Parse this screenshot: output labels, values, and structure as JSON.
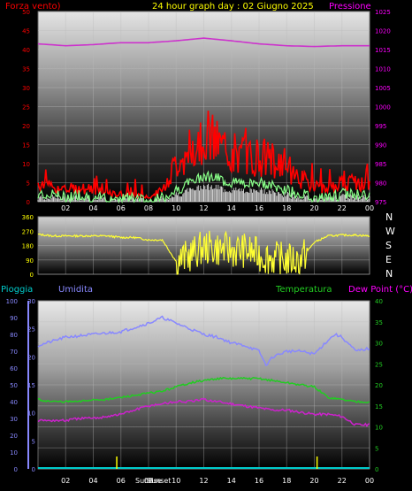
{
  "header": {
    "left_label": "Forza vento)",
    "title": "24 hour graph day : 02 Giugno 2025",
    "right_label": "Pressione"
  },
  "middle": {
    "compass": [
      "N",
      "W",
      "S",
      "E",
      "N"
    ]
  },
  "lower_header": {
    "rain_label": "Pioggia",
    "humidity_label": "Umidita",
    "temp_label": "Temperatura",
    "dew_label": "Dew Point (°C)"
  },
  "sun": {
    "sunrise_label": "Sunrise",
    "sunset_label": "Sunset",
    "sunrise_hour": 5.7,
    "sunset_hour": 20.2
  },
  "colors": {
    "wind_gust": "#ff0000",
    "wind_avg": "#88ff88",
    "wind_low": "#ffffff",
    "pressure": "#cc33cc",
    "direction": "#ffff33",
    "humidity": "#8888ff",
    "temperature": "#22cc22",
    "dewpoint": "#cc22cc",
    "rain": "#00cccc",
    "label_red": "#ff0000",
    "label_yellow": "#ffff00",
    "label_magenta": "#ff00ff"
  },
  "chart_data": [
    {
      "type": "line",
      "name": "wind-pressure",
      "x_ticks": [
        "02",
        "04",
        "06",
        "08",
        "10",
        "12",
        "14",
        "16",
        "18",
        "20",
        "22",
        "00"
      ],
      "xlim": [
        0,
        24
      ],
      "y_left_ticks": [
        0,
        5,
        10,
        15,
        20,
        25,
        30,
        35,
        40,
        45,
        50
      ],
      "ylim_left": [
        0,
        50
      ],
      "y_right_ticks": [
        975,
        980,
        985,
        990,
        995,
        1000,
        1005,
        1010,
        1015,
        1020,
        1025
      ],
      "ylim_right": [
        975,
        1025
      ],
      "grid": true,
      "series": [
        {
          "key": "gust",
          "x": [
            0,
            1,
            2,
            3,
            4,
            5,
            6,
            7,
            8,
            9,
            10,
            11,
            12,
            13,
            14,
            15,
            16,
            17,
            18,
            19,
            20,
            21,
            22,
            23,
            24
          ],
          "values": [
            5,
            4,
            3,
            4,
            3,
            2,
            2,
            2,
            1,
            3,
            10,
            14,
            18,
            15,
            13,
            12,
            12,
            11,
            9,
            6,
            4,
            3,
            5,
            5,
            4
          ]
        },
        {
          "key": "avg",
          "x": [
            0,
            1,
            2,
            3,
            4,
            5,
            6,
            7,
            8,
            9,
            10,
            11,
            12,
            13,
            14,
            15,
            16,
            17,
            18,
            19,
            20,
            21,
            22,
            23,
            24
          ],
          "values": [
            2,
            2,
            1,
            2,
            1,
            1,
            1,
            1,
            0,
            1,
            3,
            5,
            7,
            6,
            5,
            5,
            5,
            4,
            3,
            2,
            1,
            1,
            2,
            2,
            2
          ]
        },
        {
          "key": "pressure",
          "x": [
            0,
            2,
            4,
            6,
            8,
            10,
            12,
            14,
            16,
            18,
            20,
            22,
            24
          ],
          "values": [
            1016.5,
            1016,
            1016.3,
            1016.8,
            1016.8,
            1017.3,
            1018,
            1017.3,
            1016.5,
            1016,
            1015.8,
            1016,
            1016
          ]
        }
      ]
    },
    {
      "type": "line",
      "name": "wind-direction",
      "xlim": [
        0,
        24
      ],
      "y_ticks": [
        0,
        90,
        180,
        270,
        360
      ],
      "ylim": [
        0,
        360
      ],
      "grid": true,
      "series": [
        {
          "key": "direction",
          "x": [
            0,
            1,
            2,
            3,
            4,
            5,
            6,
            7,
            8,
            9,
            10,
            11,
            12,
            13,
            14,
            15,
            16,
            17,
            18,
            19,
            20,
            21,
            22,
            23,
            24
          ],
          "values": [
            250,
            240,
            240,
            240,
            240,
            240,
            230,
            230,
            215,
            215,
            80,
            120,
            170,
            160,
            150,
            150,
            120,
            100,
            90,
            90,
            200,
            240,
            245,
            245,
            240
          ]
        }
      ]
    },
    {
      "type": "line",
      "name": "temperature-humidity",
      "x_ticks": [
        "02",
        "04",
        "06",
        "08",
        "10",
        "12",
        "14",
        "16",
        "18",
        "20",
        "22",
        "00"
      ],
      "xlim": [
        0,
        24
      ],
      "y_rain_ticks": [
        0,
        10,
        20,
        30,
        40,
        50,
        60,
        70,
        80,
        90,
        100
      ],
      "ylim_rain": [
        0,
        100
      ],
      "y_humidity_ticks": [
        0,
        5,
        10,
        15,
        20,
        25,
        30
      ],
      "ylim_humidity": [
        0,
        30
      ],
      "y_temp_ticks": [
        0,
        5,
        10,
        15,
        20,
        25,
        30,
        35,
        40
      ],
      "ylim_temp": [
        0,
        40
      ],
      "grid": true,
      "series": [
        {
          "key": "humidity",
          "x": [
            0,
            2,
            4,
            6,
            8,
            9,
            10,
            11,
            12,
            13,
            14,
            15,
            16,
            16.5,
            17,
            18,
            19,
            20,
            21,
            21.5,
            22,
            23,
            24
          ],
          "values": [
            22,
            23.5,
            24,
            24.5,
            26,
            27,
            26,
            25,
            24,
            23.5,
            22.5,
            22,
            21,
            18.5,
            20,
            21,
            21,
            20.5,
            23,
            24,
            23.5,
            21,
            21.5
          ]
        },
        {
          "key": "temperature",
          "x": [
            0,
            1,
            2,
            3,
            4,
            5,
            6,
            7,
            8,
            9,
            10,
            11,
            12,
            13,
            14,
            15,
            16,
            17,
            18,
            19,
            20,
            21,
            22,
            23,
            24
          ],
          "values": [
            16.5,
            16,
            16,
            16,
            16.5,
            16.5,
            17,
            17.5,
            18,
            18.5,
            19.5,
            20.5,
            21,
            21.5,
            21.5,
            21.5,
            21.5,
            21,
            20.5,
            20,
            19.5,
            17,
            16.5,
            16,
            16
          ]
        },
        {
          "key": "dewpoint",
          "x": [
            0,
            1,
            2,
            3,
            4,
            5,
            6,
            7,
            8,
            9,
            10,
            11,
            12,
            13,
            14,
            15,
            16,
            17,
            18,
            19,
            20,
            21,
            22,
            23,
            24
          ],
          "values": [
            11.5,
            11.5,
            11.5,
            12,
            12,
            12.5,
            13,
            14,
            15,
            15.5,
            16,
            16,
            16.5,
            16,
            15.5,
            15,
            14.5,
            14,
            14,
            13.5,
            13,
            13,
            12.5,
            10.5,
            10.5
          ]
        },
        {
          "key": "rain",
          "x": [
            0,
            24
          ],
          "values": [
            0,
            0
          ]
        }
      ]
    }
  ]
}
